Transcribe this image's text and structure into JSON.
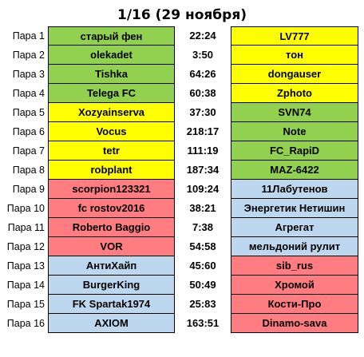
{
  "title": "1/16 (29 ноября)",
  "colors": {
    "green": "#92d050",
    "yellow": "#ffff00",
    "red": "#ff7c80",
    "blue": "#bdd7ee"
  },
  "matches": [
    {
      "pair": "Пара 1",
      "left": "старый фен",
      "left_color": "green",
      "score": "22:24",
      "right": "LV777",
      "right_color": "yellow"
    },
    {
      "pair": "Пара 2",
      "left": "olekadet",
      "left_color": "green",
      "score": "3:50",
      "right": "тон",
      "right_color": "yellow"
    },
    {
      "pair": "Пара 3",
      "left": "Tishka",
      "left_color": "green",
      "score": "64:26",
      "right": "dongauser",
      "right_color": "yellow"
    },
    {
      "pair": "Пара 4",
      "left": "Telega FC",
      "left_color": "green",
      "score": "60:38",
      "right": "Zphoto",
      "right_color": "yellow"
    },
    {
      "pair": "Пара 5",
      "left": "Xozyainserva",
      "left_color": "yellow",
      "score": "37:30",
      "right": "SVN74",
      "right_color": "green"
    },
    {
      "pair": "Пара 6",
      "left": "Vocus",
      "left_color": "yellow",
      "score": "218:17",
      "right": "Note",
      "right_color": "green"
    },
    {
      "pair": "Пара 7",
      "left": "tetr",
      "left_color": "yellow",
      "score": "111:19",
      "right": "FC_RapiD",
      "right_color": "green"
    },
    {
      "pair": "Пара 8",
      "left": "robplant",
      "left_color": "yellow",
      "score": "187:34",
      "right": "MAZ-6422",
      "right_color": "green"
    },
    {
      "pair": "Пара 9",
      "left": "scorpion123321",
      "left_color": "red",
      "score": "109:24",
      "right": "11Лабутенов",
      "right_color": "blue"
    },
    {
      "pair": "Пара 10",
      "left": "fc rostov2016",
      "left_color": "red",
      "score": "38:21",
      "right": "Энергетик Нетишин",
      "right_color": "blue"
    },
    {
      "pair": "Пара 11",
      "left": "Roberto Baggio",
      "left_color": "red",
      "score": "7:38",
      "right": "Агрегат",
      "right_color": "blue"
    },
    {
      "pair": "Пара 12",
      "left": "VOR",
      "left_color": "red",
      "score": "54:58",
      "right": "мельдоний рулит",
      "right_color": "blue"
    },
    {
      "pair": "Пара 13",
      "left": "АнтиХайп",
      "left_color": "blue",
      "score": "45:60",
      "right": "sib_rus",
      "right_color": "red"
    },
    {
      "pair": "Пара 14",
      "left": "BurgerKing",
      "left_color": "blue",
      "score": "50:49",
      "right": "Хромой",
      "right_color": "red"
    },
    {
      "pair": "Пара 15",
      "left": "FK Spartak1974",
      "left_color": "blue",
      "score": "25:83",
      "right": "Кости-Про",
      "right_color": "red"
    },
    {
      "pair": "Пара 16",
      "left": "AXIOM",
      "left_color": "blue",
      "score": "163:51",
      "right": "Dinamo-sava",
      "right_color": "red"
    }
  ]
}
